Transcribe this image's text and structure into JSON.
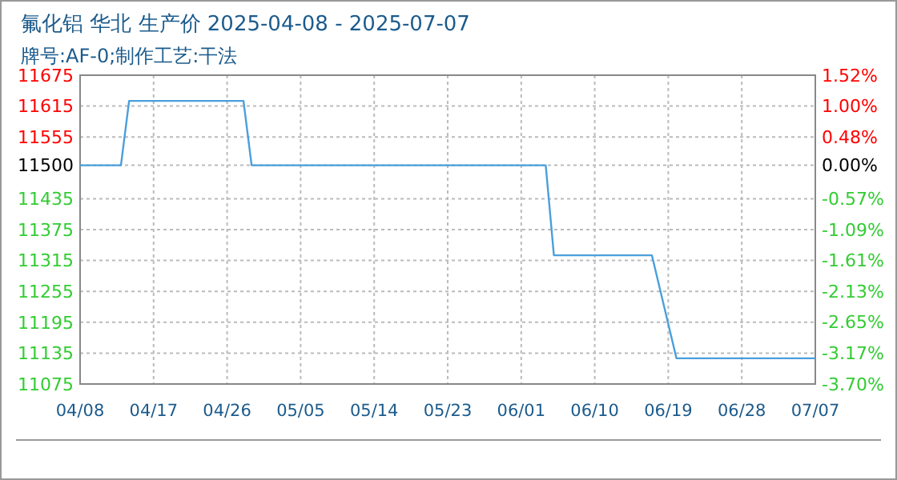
{
  "chart_data": {
    "type": "line",
    "title": "氟化铝 华北 生产价 2025-04-08 - 2025-07-07",
    "subtitle": "牌号:AF-0;制作工艺:干法",
    "x": [
      "2025-04-08",
      "2025-04-13",
      "2025-04-14",
      "2025-04-28",
      "2025-04-29",
      "2025-06-04",
      "2025-06-05",
      "2025-06-17",
      "2025-06-20",
      "2025-07-07"
    ],
    "series": [
      {
        "color": "#4a9fdc",
        "values": [
          11500,
          11500,
          11625,
          11625,
          11500,
          11500,
          11325,
          11325,
          11125,
          11125
        ]
      }
    ],
    "xlim": [
      "2025-04-08",
      "2025-07-07"
    ],
    "xticks": [
      {
        "value": "2025-04-08",
        "label": "04/08"
      },
      {
        "value": "2025-04-17",
        "label": "04/17"
      },
      {
        "value": "2025-04-26",
        "label": "04/26"
      },
      {
        "value": "2025-05-05",
        "label": "05/05"
      },
      {
        "value": "2025-05-14",
        "label": "05/14"
      },
      {
        "value": "2025-05-23",
        "label": "05/23"
      },
      {
        "value": "2025-06-01",
        "label": "06/01"
      },
      {
        "value": "2025-06-10",
        "label": "06/10"
      },
      {
        "value": "2025-06-19",
        "label": "06/19"
      },
      {
        "value": "2025-06-28",
        "label": "06/28"
      },
      {
        "value": "2025-07-07",
        "label": "07/07"
      }
    ],
    "ylim": [
      11075,
      11675
    ],
    "yticks": [
      11075,
      11135,
      11195,
      11255,
      11315,
      11375,
      11435,
      11500,
      11555,
      11615,
      11675
    ],
    "y2lim": [
      -3.7,
      1.52
    ],
    "y2ticks": [
      {
        "value": -3.7,
        "label": "-3.70%"
      },
      {
        "value": -3.17,
        "label": "-3.17%"
      },
      {
        "value": -2.65,
        "label": "-2.65%"
      },
      {
        "value": -2.13,
        "label": "-2.13%"
      },
      {
        "value": -1.61,
        "label": "-1.61%"
      },
      {
        "value": -1.09,
        "label": "-1.09%"
      },
      {
        "value": -0.57,
        "label": "-0.57%"
      },
      {
        "value": 0,
        "label": "0.00%"
      },
      {
        "value": 0.48,
        "label": "0.48%"
      },
      {
        "value": 1,
        "label": "1.00%"
      },
      {
        "value": 1.52,
        "label": "1.52%"
      }
    ],
    "grid": true
  }
}
